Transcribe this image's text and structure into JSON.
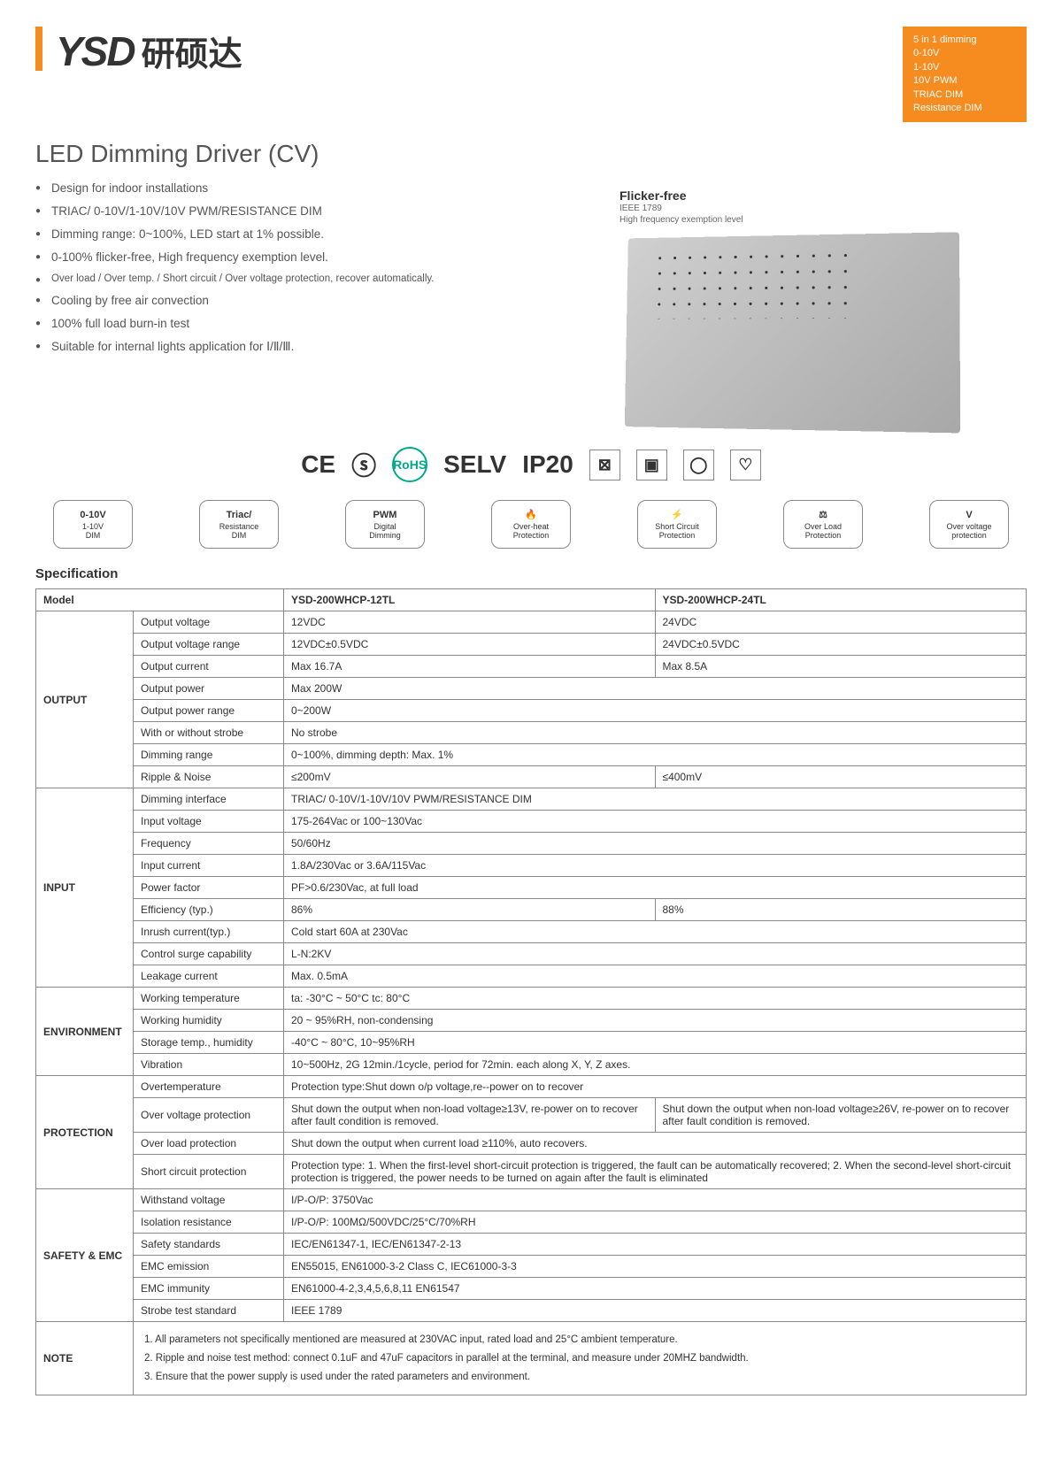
{
  "logo": {
    "text": "YSD",
    "cn": "研硕达"
  },
  "dim_box": {
    "title": "5 in 1 dimming",
    "lines": [
      "0-10V",
      "1-10V",
      "10V PWM",
      "TRIAC DIM",
      "Resistance DIM"
    ]
  },
  "title": "LED Dimming Driver (CV)",
  "features": [
    {
      "text": "Design for indoor installations",
      "small": false
    },
    {
      "text": "TRIAC/ 0-10V/1-10V/10V PWM/RESISTANCE DIM",
      "small": false
    },
    {
      "text": "Dimming range: 0~100%, LED start at 1% possible.",
      "small": false
    },
    {
      "text": "0-100% flicker-free, High frequency exemption level.",
      "small": false
    },
    {
      "text": "Over load / Over temp. / Short circuit / Over voltage protection, recover automatically.",
      "small": true
    },
    {
      "text": "Cooling by free air convection",
      "small": false
    },
    {
      "text": "100% full load burn-in test",
      "small": false
    },
    {
      "text": "Suitable for internal lights application for Ⅰ/Ⅱ/Ⅲ.",
      "small": false
    }
  ],
  "flicker": {
    "title": "Flicker-free",
    "line1": "IEEE 1789",
    "line2": "High frequency exemption level"
  },
  "certs": [
    "CE",
    "ⓢ",
    "RoHS",
    "SELV",
    "IP20",
    "⊠",
    "▣",
    "◯",
    "♡"
  ],
  "badges": [
    {
      "t1": "0-10V",
      "t2": "1-10V",
      "t3": "DIM"
    },
    {
      "t1": "Triac/",
      "t2": "Resistance",
      "t3": "DIM"
    },
    {
      "t1": "PWM",
      "t2": "Digital",
      "t3": "Dimming"
    },
    {
      "t1": "🔥",
      "t2": "Over-heat",
      "t3": "Protection"
    },
    {
      "t1": "⚡",
      "t2": "Short Circuit",
      "t3": "Protection"
    },
    {
      "t1": "⚖",
      "t2": "Over Load",
      "t3": "Protection"
    },
    {
      "t1": "V",
      "t2": "Over voltage",
      "t3": "protection"
    }
  ],
  "spec_title": "Specification",
  "table": {
    "model_label": "Model",
    "models": [
      "YSD-200WHCP-12TL",
      "YSD-200WHCP-24TL"
    ],
    "sections": [
      {
        "name": "OUTPUT",
        "rows": [
          {
            "p": "Output voltage",
            "v": [
              "12VDC",
              "24VDC"
            ]
          },
          {
            "p": "Output voltage range",
            "v": [
              "12VDC±0.5VDC",
              "24VDC±0.5VDC"
            ]
          },
          {
            "p": "Output current",
            "v": [
              "Max 16.7A",
              "Max 8.5A"
            ]
          },
          {
            "p": "Output power",
            "v": [
              "Max 200W"
            ]
          },
          {
            "p": "Output power range",
            "v": [
              "0~200W"
            ]
          },
          {
            "p": "With or without strobe",
            "v": [
              "No strobe"
            ]
          },
          {
            "p": "Dimming range",
            "v": [
              "0~100%, dimming depth: Max. 1%"
            ]
          },
          {
            "p": "Ripple & Noise",
            "v": [
              "≤200mV",
              "≤400mV"
            ]
          }
        ]
      },
      {
        "name": "INPUT",
        "rows": [
          {
            "p": "Dimming interface",
            "v": [
              "TRIAC/ 0-10V/1-10V/10V PWM/RESISTANCE DIM"
            ]
          },
          {
            "p": "Input voltage",
            "v": [
              "175-264Vac or 100~130Vac"
            ]
          },
          {
            "p": "Frequency",
            "v": [
              "50/60Hz"
            ]
          },
          {
            "p": "Input current",
            "v": [
              "1.8A/230Vac or 3.6A/115Vac"
            ]
          },
          {
            "p": "Power factor",
            "v": [
              "PF>0.6/230Vac, at full load"
            ]
          },
          {
            "p": "Efficiency (typ.)",
            "v": [
              "86%",
              "88%"
            ]
          },
          {
            "p": "Inrush current(typ.)",
            "v": [
              "Cold start 60A at 230Vac"
            ]
          },
          {
            "p": "Control surge capability",
            "v": [
              "L-N:2KV"
            ]
          },
          {
            "p": "Leakage current",
            "v": [
              "Max. 0.5mA"
            ]
          }
        ]
      },
      {
        "name": "ENVIRONMENT",
        "rows": [
          {
            "p": "Working temperature",
            "v": [
              "ta: -30°C ~ 50°C  tc: 80°C"
            ]
          },
          {
            "p": "Working humidity",
            "v": [
              "20 ~ 95%RH, non-condensing"
            ]
          },
          {
            "p": "Storage temp., humidity",
            "v": [
              "-40°C ~ 80°C, 10~95%RH"
            ]
          },
          {
            "p": "Vibration",
            "v": [
              "10~500Hz, 2G 12min./1cycle, period for 72min. each along X, Y, Z axes."
            ]
          }
        ]
      },
      {
        "name": "PROTECTION",
        "rows": [
          {
            "p": "Overtemperature",
            "v": [
              "Protection type:Shut down o/p voltage,re--power on to recover"
            ]
          },
          {
            "p": "Over voltage protection",
            "v": [
              "Shut down the output when non-load voltage≥13V, re-power on to recover after fault condition is removed.",
              "Shut down the output when non-load voltage≥26V, re-power on to recover after fault condition is removed."
            ]
          },
          {
            "p": "Over load protection",
            "v": [
              "Shut down the output when current load ≥110%, auto recovers."
            ]
          },
          {
            "p": "Short circuit protection",
            "v": [
              "Protection type: 1. When the first-level short-circuit protection is triggered, the fault can be automatically recovered; 2. When the second-level short-circuit protection is triggered, the power needs to be turned on again after the fault is eliminated"
            ]
          }
        ]
      },
      {
        "name": "SAFETY & EMC",
        "rows": [
          {
            "p": "Withstand voltage",
            "v": [
              "I/P-O/P: 3750Vac"
            ]
          },
          {
            "p": "Isolation resistance",
            "v": [
              "I/P-O/P: 100MΩ/500VDC/25°C/70%RH"
            ]
          },
          {
            "p": "Safety standards",
            "v": [
              "IEC/EN61347-1, IEC/EN61347-2-13"
            ]
          },
          {
            "p": "EMC emission",
            "v": [
              "EN55015, EN61000-3-2 Class C, IEC61000-3-3"
            ]
          },
          {
            "p": "EMC immunity",
            "v": [
              "EN61000-4-2,3,4,5,6,8,11 EN61547"
            ]
          },
          {
            "p": "Strobe test standard",
            "v": [
              "IEEE 1789"
            ]
          }
        ]
      }
    ],
    "note_label": "NOTE",
    "notes": [
      "1. All parameters not specifically mentioned are measured at 230VAC input, rated load and 25°C ambient temperature.",
      "2. Ripple and noise test method: connect 0.1uF and 47uF capacitors in parallel at the terminal, and measure under 20MHZ bandwidth.",
      "3. Ensure that the power supply is used under the rated parameters and environment."
    ]
  }
}
